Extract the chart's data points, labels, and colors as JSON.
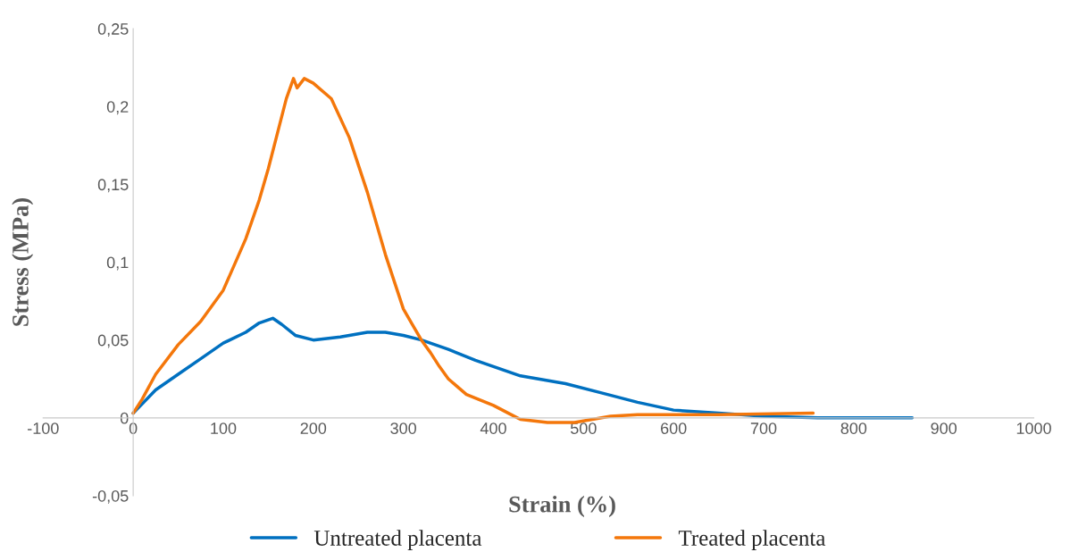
{
  "chart_data": {
    "type": "line",
    "xlabel": "Strain (%)",
    "ylabel": "Stress (MPa)",
    "series": [
      {
        "name": "Untreated placenta",
        "color": "#0070c0",
        "x": [
          0,
          25,
          50,
          75,
          100,
          125,
          140,
          155,
          165,
          180,
          200,
          230,
          260,
          280,
          300,
          320,
          350,
          380,
          410,
          430,
          480,
          520,
          560,
          600,
          650,
          700,
          760,
          865
        ],
        "values": [
          0.003,
          0.018,
          0.028,
          0.038,
          0.048,
          0.055,
          0.061,
          0.064,
          0.06,
          0.053,
          0.05,
          0.052,
          0.055,
          0.055,
          0.053,
          0.05,
          0.044,
          0.037,
          0.031,
          0.027,
          0.022,
          0.016,
          0.01,
          0.005,
          0.003,
          0.001,
          0,
          0
        ]
      },
      {
        "name": "Treated placenta",
        "color": "#f4770b",
        "x": [
          0,
          10,
          25,
          50,
          75,
          100,
          125,
          140,
          150,
          170,
          178,
          182,
          190,
          200,
          220,
          240,
          260,
          280,
          300,
          310,
          320,
          330,
          340,
          350,
          370,
          400,
          420,
          430,
          460,
          490,
          510,
          530,
          560,
          650,
          755
        ],
        "values": [
          0.003,
          0.012,
          0.028,
          0.047,
          0.062,
          0.082,
          0.115,
          0.14,
          0.16,
          0.205,
          0.218,
          0.212,
          0.218,
          0.215,
          0.205,
          0.18,
          0.145,
          0.105,
          0.07,
          0.06,
          0.05,
          0.042,
          0.033,
          0.025,
          0.015,
          0.008,
          0.002,
          -0.001,
          -0.003,
          -0.003,
          -0.001,
          0.001,
          0.002,
          0.002,
          0.003
        ]
      }
    ],
    "xlim": [
      -100,
      1000
    ],
    "xticks": [
      -100,
      0,
      100,
      200,
      300,
      400,
      500,
      600,
      700,
      800,
      900,
      1000
    ],
    "ylim": [
      -0.05,
      0.25
    ],
    "yticks": [
      {
        "value": -0.05,
        "label": "-0,05"
      },
      0,
      {
        "value": 0.05,
        "label": "0,05"
      },
      {
        "value": 0.1,
        "label": "0,1"
      },
      {
        "value": 0.15,
        "label": "0,15"
      },
      {
        "value": 0.2,
        "label": "0,2"
      },
      {
        "value": 0.25,
        "label": "0,25"
      }
    ],
    "grid": false,
    "legend": "bottom",
    "line_style": "solid",
    "marker": "none"
  }
}
